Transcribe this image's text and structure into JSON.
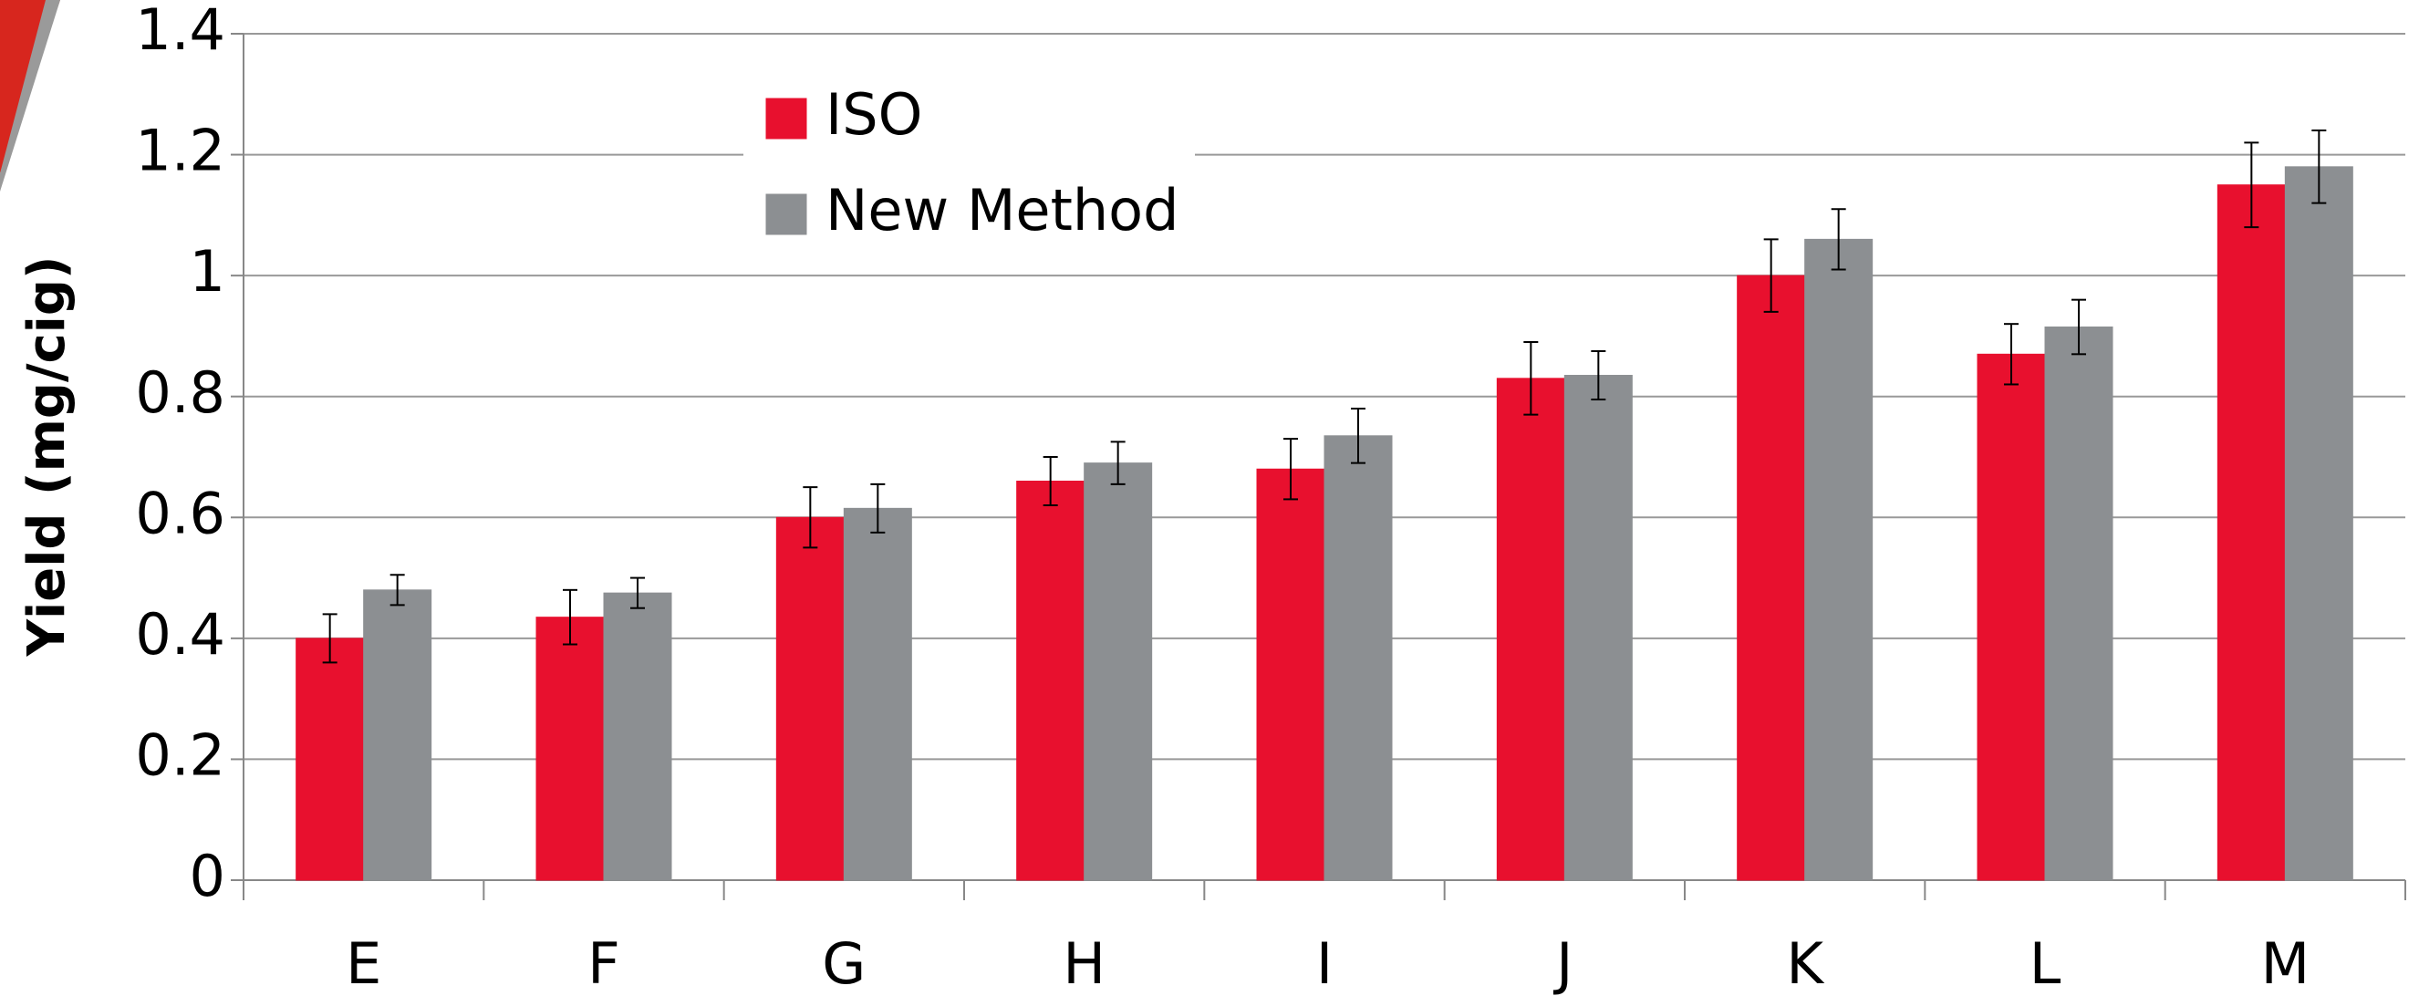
{
  "chart_data": {
    "type": "bar",
    "y_label": "Yield (mg/cig)",
    "categories": [
      "E",
      "F",
      "G",
      "H",
      "I",
      "J",
      "K",
      "L",
      "M"
    ],
    "series": [
      {
        "name": "ISO",
        "color": "#e8102e",
        "values": [
          0.4,
          0.435,
          0.6,
          0.66,
          0.68,
          0.83,
          1.0,
          0.87,
          1.15
        ],
        "errors": [
          0.04,
          0.045,
          0.05,
          0.04,
          0.05,
          0.06,
          0.06,
          0.05,
          0.07
        ]
      },
      {
        "name": "New Method",
        "color": "#8c8f92",
        "values": [
          0.48,
          0.475,
          0.615,
          0.69,
          0.735,
          0.835,
          1.06,
          0.915,
          1.18
        ],
        "errors": [
          0.025,
          0.025,
          0.04,
          0.035,
          0.045,
          0.04,
          0.05,
          0.045,
          0.06
        ]
      }
    ],
    "ylim": [
      0,
      1.4
    ],
    "yticks": [
      0,
      0.2,
      0.4,
      0.6,
      0.8,
      1,
      1.2,
      1.4
    ],
    "grid": true,
    "legend": "top-left"
  }
}
